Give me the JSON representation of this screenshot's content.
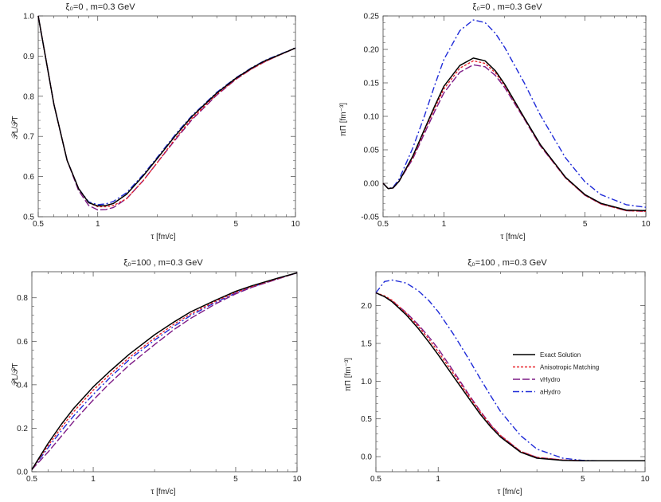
{
  "chart_data": [
    {
      "id": "p1",
      "type": "line",
      "title": "ξ₀=0 ,  m=0.3 GeV",
      "xlabel": "τ [fm/c]",
      "ylabel": "𝒫L/𝒫T",
      "xscale": "log",
      "xlim": [
        0.5,
        10
      ],
      "ylim": [
        0.5,
        1.0
      ],
      "xticks": [
        0.5,
        1,
        5,
        10
      ],
      "xtick_labels": [
        "0.5",
        "1",
        "5",
        "10"
      ],
      "yticks": [
        0.5,
        0.6,
        0.7,
        0.8,
        0.9,
        1.0
      ],
      "ytick_labels": [
        "0.5",
        "0.6",
        "0.7",
        "0.8",
        "0.9",
        "1.0"
      ],
      "x": [
        0.5,
        0.6,
        0.7,
        0.8,
        0.9,
        1.0,
        1.1,
        1.2,
        1.4,
        1.7,
        2.0,
        2.5,
        3.0,
        4.0,
        5.0,
        6.0,
        7.0,
        8.0,
        10.0
      ],
      "series": [
        {
          "name": "Exact Solution",
          "values": [
            1.0,
            0.78,
            0.64,
            0.57,
            0.535,
            0.527,
            0.528,
            0.533,
            0.556,
            0.602,
            0.645,
            0.705,
            0.75,
            0.808,
            0.845,
            0.87,
            0.888,
            0.9,
            0.92
          ]
        },
        {
          "name": "Anisotropic Matching",
          "values": [
            1.0,
            0.78,
            0.64,
            0.57,
            0.535,
            0.525,
            0.525,
            0.528,
            0.545,
            0.59,
            0.635,
            0.698,
            0.745,
            0.805,
            0.843,
            0.868,
            0.886,
            0.899,
            0.92
          ]
        },
        {
          "name": "vHydro",
          "values": [
            1.0,
            0.78,
            0.64,
            0.565,
            0.528,
            0.517,
            0.518,
            0.523,
            0.545,
            0.59,
            0.635,
            0.695,
            0.742,
            0.803,
            0.842,
            0.868,
            0.886,
            0.899,
            0.92
          ]
        },
        {
          "name": "aHydro",
          "values": [
            1.0,
            0.78,
            0.64,
            0.57,
            0.537,
            0.53,
            0.532,
            0.538,
            0.56,
            0.605,
            0.648,
            0.708,
            0.752,
            0.81,
            0.846,
            0.871,
            0.889,
            0.901,
            0.92
          ]
        }
      ]
    },
    {
      "id": "p2",
      "type": "line",
      "title": "ξ₀=0 ,  m=0.3 GeV",
      "xlabel": "τ [fm/c]",
      "ylabel": "πΠ [fm⁻³]",
      "xscale": "log",
      "xlim": [
        0.5,
        10
      ],
      "ylim": [
        -0.05,
        0.25
      ],
      "xticks": [
        0.5,
        1,
        5,
        10
      ],
      "xtick_labels": [
        "0.5",
        "1",
        "5",
        "10"
      ],
      "yticks": [
        -0.05,
        0.0,
        0.05,
        0.1,
        0.15,
        0.2,
        0.25
      ],
      "ytick_labels": [
        "-0.05",
        "0.00",
        "0.05",
        "0.10",
        "0.15",
        "0.20",
        "0.25"
      ],
      "x": [
        0.5,
        0.53,
        0.56,
        0.6,
        0.7,
        0.8,
        0.9,
        1.0,
        1.2,
        1.4,
        1.6,
        1.8,
        2.0,
        2.5,
        3.0,
        4.0,
        5.0,
        6.0,
        8.0,
        10.0
      ],
      "series": [
        {
          "name": "Exact Solution",
          "values": [
            0.0,
            -0.008,
            -0.007,
            0.003,
            0.04,
            0.08,
            0.115,
            0.145,
            0.176,
            0.187,
            0.183,
            0.168,
            0.148,
            0.098,
            0.058,
            0.009,
            -0.017,
            -0.03,
            -0.04,
            -0.041
          ]
        },
        {
          "name": "Anisotropic Matching",
          "values": [
            0.0,
            -0.008,
            -0.007,
            0.003,
            0.038,
            0.078,
            0.112,
            0.141,
            0.172,
            0.183,
            0.179,
            0.165,
            0.146,
            0.097,
            0.057,
            0.008,
            -0.018,
            -0.031,
            -0.041,
            -0.042
          ]
        },
        {
          "name": "vHydro",
          "values": [
            0.0,
            -0.008,
            -0.007,
            0.003,
            0.036,
            0.074,
            0.107,
            0.135,
            0.166,
            0.177,
            0.174,
            0.161,
            0.143,
            0.096,
            0.056,
            0.008,
            -0.018,
            -0.031,
            -0.041,
            -0.042
          ]
        },
        {
          "name": "aHydro",
          "values": [
            0.0,
            -0.008,
            -0.006,
            0.006,
            0.052,
            0.1,
            0.146,
            0.185,
            0.228,
            0.244,
            0.24,
            0.224,
            0.203,
            0.15,
            0.102,
            0.038,
            0.002,
            -0.017,
            -0.032,
            -0.036
          ]
        }
      ]
    },
    {
      "id": "p3",
      "type": "line",
      "title": "ξ₀=100 ,  m=0.3 GeV",
      "xlabel": "τ [fm/c]",
      "ylabel": "𝒫L/𝒫T",
      "xscale": "log",
      "xlim": [
        0.5,
        10
      ],
      "ylim": [
        0.0,
        0.92
      ],
      "xticks": [
        0.5,
        1,
        5,
        10
      ],
      "xtick_labels": [
        "0.5",
        "1",
        "5",
        "10"
      ],
      "yticks": [
        0.0,
        0.2,
        0.4,
        0.6,
        0.8
      ],
      "ytick_labels": [
        "0.0",
        "0.2",
        "0.4",
        "0.6",
        "0.8"
      ],
      "x": [
        0.5,
        0.6,
        0.7,
        0.8,
        1.0,
        1.2,
        1.5,
        2.0,
        2.5,
        3.0,
        4.0,
        5.0,
        6.0,
        8.0,
        10.0
      ],
      "series": [
        {
          "name": "Exact Solution",
          "values": [
            0.01,
            0.13,
            0.22,
            0.29,
            0.39,
            0.46,
            0.54,
            0.63,
            0.69,
            0.735,
            0.79,
            0.83,
            0.855,
            0.89,
            0.915
          ]
        },
        {
          "name": "Anisotropic Matching",
          "values": [
            0.01,
            0.12,
            0.205,
            0.275,
            0.375,
            0.445,
            0.525,
            0.615,
            0.68,
            0.725,
            0.785,
            0.825,
            0.852,
            0.888,
            0.915
          ]
        },
        {
          "name": "vHydro",
          "values": [
            0.01,
            0.09,
            0.165,
            0.23,
            0.33,
            0.405,
            0.49,
            0.585,
            0.655,
            0.705,
            0.773,
            0.818,
            0.848,
            0.886,
            0.915
          ]
        },
        {
          "name": "aHydro",
          "values": [
            0.01,
            0.11,
            0.19,
            0.255,
            0.355,
            0.43,
            0.515,
            0.605,
            0.67,
            0.718,
            0.78,
            0.822,
            0.85,
            0.887,
            0.915
          ]
        }
      ]
    },
    {
      "id": "p4",
      "type": "line",
      "title": "ξ₀=100 ,  m=0.3 GeV",
      "xlabel": "τ [fm/c]",
      "ylabel": "πΠ [fm⁻³]",
      "xscale": "log",
      "xlim": [
        0.5,
        10
      ],
      "ylim": [
        -0.2,
        2.45
      ],
      "xticks": [
        0.5,
        1,
        5,
        10
      ],
      "xtick_labels": [
        "0.5",
        "1",
        "5",
        "10"
      ],
      "yticks": [
        0.0,
        0.5,
        1.0,
        1.5,
        2.0
      ],
      "ytick_labels": [
        "0.0",
        "0.5",
        "1.0",
        "1.5",
        "2.0"
      ],
      "x": [
        0.5,
        0.55,
        0.6,
        0.7,
        0.8,
        0.9,
        1.0,
        1.2,
        1.4,
        1.6,
        1.8,
        2.0,
        2.5,
        3.0,
        4.0,
        5.0,
        6.0,
        8.0,
        10.0
      ],
      "series": [
        {
          "name": "Exact Solution",
          "values": [
            2.17,
            2.12,
            2.05,
            1.88,
            1.7,
            1.52,
            1.35,
            1.04,
            0.78,
            0.56,
            0.39,
            0.26,
            0.06,
            -0.02,
            -0.05,
            -0.055,
            -0.055,
            -0.055,
            -0.055
          ]
        },
        {
          "name": "Anisotropic Matching",
          "values": [
            2.17,
            2.13,
            2.07,
            1.9,
            1.73,
            1.56,
            1.39,
            1.08,
            0.81,
            0.59,
            0.41,
            0.28,
            0.07,
            -0.01,
            -0.045,
            -0.055,
            -0.055,
            -0.055,
            -0.055
          ]
        },
        {
          "name": "vHydro",
          "values": [
            2.17,
            2.12,
            2.06,
            1.91,
            1.75,
            1.59,
            1.43,
            1.11,
            0.83,
            0.6,
            0.42,
            0.28,
            0.07,
            -0.01,
            -0.045,
            -0.055,
            -0.055,
            -0.055,
            -0.055
          ]
        },
        {
          "name": "aHydro",
          "values": [
            2.17,
            2.32,
            2.34,
            2.3,
            2.2,
            2.07,
            1.92,
            1.6,
            1.3,
            1.03,
            0.8,
            0.6,
            0.28,
            0.1,
            -0.02,
            -0.05,
            -0.055,
            -0.055,
            -0.055
          ]
        }
      ]
    }
  ],
  "legend": {
    "placement": "center-right",
    "entries": [
      "Exact Solution",
      "Anisotropic Matching",
      "vHydro",
      "aHydro"
    ]
  },
  "styles": {
    "Exact Solution": {
      "color": "#000000",
      "dash": ""
    },
    "Anisotropic Matching": {
      "color": "#e8242b",
      "dash": "3,2"
    },
    "vHydro": {
      "color": "#7d1a86",
      "dash": "9,3"
    },
    "aHydro": {
      "color": "#1f2bd8",
      "dash": "8,3,2,3"
    }
  }
}
